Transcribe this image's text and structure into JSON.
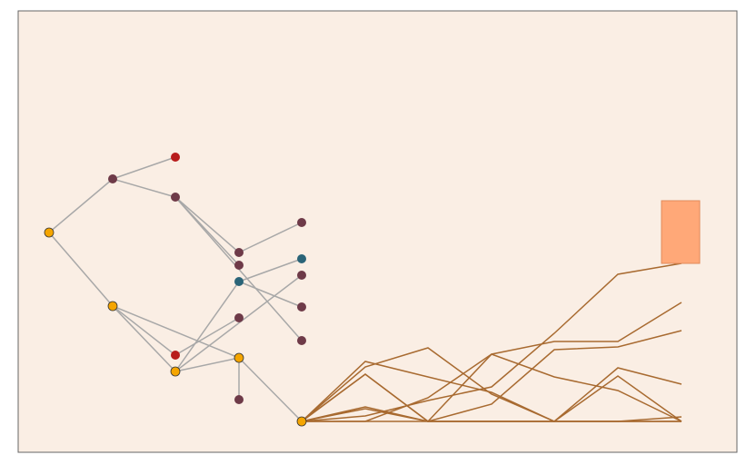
{
  "colors": {
    "page_background": "#ffffff",
    "canvas_background": "#faeee4",
    "canvas_border": "#666666",
    "tree_edge": "#a8a8a8",
    "path_line": "#a86a30",
    "rect_fill": "#ffa878",
    "rect_stroke": "#e08a5a",
    "node_stroke": "#333333"
  },
  "nodes": [
    {
      "id": "n0",
      "kind": "root",
      "color": "#f5a500"
    },
    {
      "id": "n1",
      "kind": "inner",
      "color": "#6e3a48"
    },
    {
      "id": "n2",
      "kind": "root",
      "color": "#f5a500"
    },
    {
      "id": "n3",
      "kind": "leaf",
      "color": "#b81c1c"
    },
    {
      "id": "n4",
      "kind": "inner",
      "color": "#6e3a48"
    },
    {
      "id": "n5",
      "kind": "inner",
      "color": "#b81c1c"
    },
    {
      "id": "n6",
      "kind": "root",
      "color": "#f5a500"
    },
    {
      "id": "n7",
      "kind": "inner",
      "color": "#6e3a48"
    },
    {
      "id": "n8",
      "kind": "inner",
      "color": "#6e3a48"
    },
    {
      "id": "n9",
      "kind": "inner",
      "color": "#2a6478"
    },
    {
      "id": "n10",
      "kind": "inner",
      "color": "#6e3a48"
    },
    {
      "id": "n11",
      "kind": "root",
      "color": "#f5a500"
    },
    {
      "id": "n12",
      "kind": "inner",
      "color": "#6e3a48"
    },
    {
      "id": "n13",
      "kind": "inner",
      "color": "#6e3a48"
    },
    {
      "id": "n14",
      "kind": "inner",
      "color": "#2a6478"
    },
    {
      "id": "n15",
      "kind": "inner",
      "color": "#6e3a48"
    },
    {
      "id": "n16",
      "kind": "inner",
      "color": "#6e3a48"
    },
    {
      "id": "n17",
      "kind": "inner",
      "color": "#6e3a48"
    },
    {
      "id": "n18",
      "kind": "root",
      "color": "#f5a500"
    }
  ],
  "edges": [
    [
      "n0",
      "n1"
    ],
    [
      "n0",
      "n2"
    ],
    [
      "n1",
      "n3"
    ],
    [
      "n1",
      "n4"
    ],
    [
      "n4",
      "n7"
    ],
    [
      "n4",
      "n8"
    ],
    [
      "n4",
      "n17"
    ],
    [
      "n7",
      "n12"
    ],
    [
      "n2",
      "n5"
    ],
    [
      "n2",
      "n6"
    ],
    [
      "n2",
      "n11"
    ],
    [
      "n5",
      "n10"
    ],
    [
      "n6",
      "n9"
    ],
    [
      "n6",
      "n11"
    ],
    [
      "n9",
      "n14"
    ],
    [
      "n11",
      "n16"
    ],
    [
      "n11",
      "n18"
    ]
  ]
}
